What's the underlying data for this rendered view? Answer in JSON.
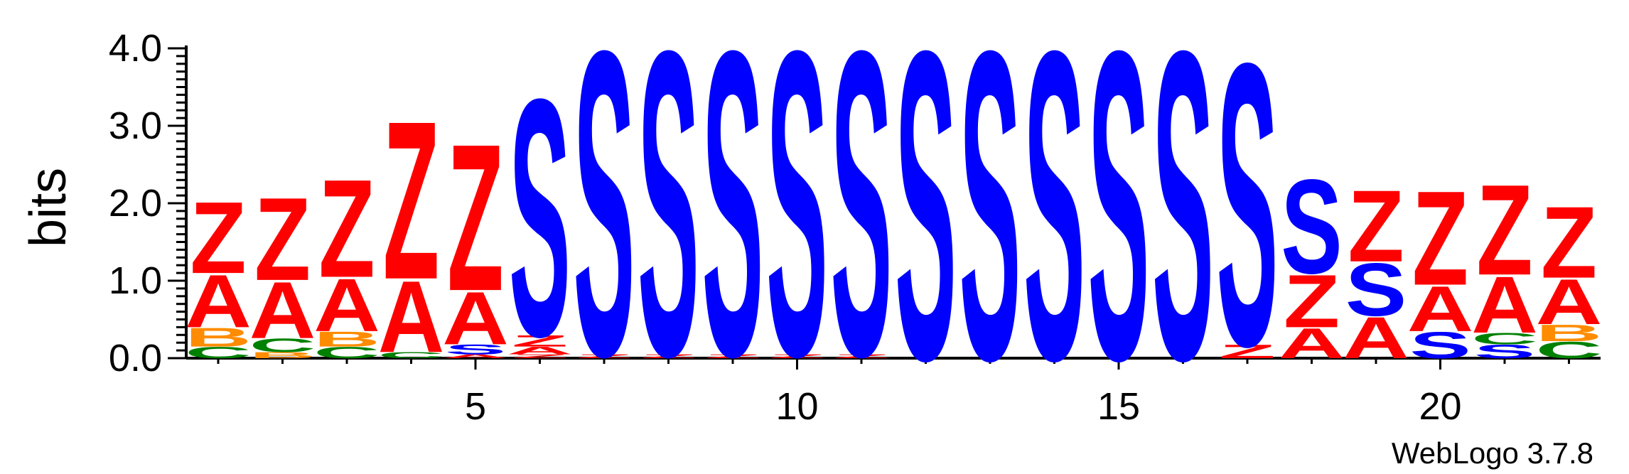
{
  "chart_data": {
    "type": "sequence-logo",
    "ylabel": "bits",
    "ylim": [
      0,
      4.0
    ],
    "y_ticks": [
      "0.0",
      "1.0",
      "2.0",
      "3.0",
      "4.0"
    ],
    "x_ticks": [
      5,
      10,
      15,
      20
    ],
    "x_tick_labels": [
      "5",
      "10",
      "15",
      "20"
    ],
    "credit": "WebLogo 3.7.8",
    "colors": {
      "Z": "#ff0000",
      "A": "#ff0000",
      "S": "#0000ff",
      "B": "#ff8c00",
      "C": "#008000"
    },
    "columns": [
      {
        "position": 1,
        "stack": [
          {
            "letter": "C",
            "bits": 0.15
          },
          {
            "letter": "B",
            "bits": 0.25
          },
          {
            "letter": "A",
            "bits": 0.7
          },
          {
            "letter": "Z",
            "bits": 0.95
          }
        ]
      },
      {
        "position": 2,
        "stack": [
          {
            "letter": "B",
            "bits": 0.08
          },
          {
            "letter": "C",
            "bits": 0.18
          },
          {
            "letter": "A",
            "bits": 0.75
          },
          {
            "letter": "Z",
            "bits": 1.1
          }
        ]
      },
      {
        "position": 3,
        "stack": [
          {
            "letter": "C",
            "bits": 0.15
          },
          {
            "letter": "B",
            "bits": 0.2
          },
          {
            "letter": "A",
            "bits": 0.7
          },
          {
            "letter": "Z",
            "bits": 1.3
          }
        ]
      },
      {
        "position": 4,
        "stack": [
          {
            "letter": "C",
            "bits": 0.08
          },
          {
            "letter": "A",
            "bits": 0.95
          },
          {
            "letter": "Z",
            "bits": 2.1
          }
        ]
      },
      {
        "position": 5,
        "stack": [
          {
            "letter": "A",
            "bits": 0.05
          },
          {
            "letter": "S",
            "bits": 0.13
          },
          {
            "letter": "A",
            "bits": 0.7
          },
          {
            "letter": "Z",
            "bits": 1.95
          }
        ]
      },
      {
        "position": 6,
        "stack": [
          {
            "letter": "Z",
            "bits": 0.05
          },
          {
            "letter": "A",
            "bits": 0.1
          },
          {
            "letter": "Z",
            "bits": 0.15
          },
          {
            "letter": "S",
            "bits": 3.15
          }
        ]
      },
      {
        "position": 7,
        "stack": [
          {
            "letter": "Z",
            "bits": 0.05
          },
          {
            "letter": "S",
            "bits": 4.05
          }
        ]
      },
      {
        "position": 8,
        "stack": [
          {
            "letter": "Z",
            "bits": 0.05
          },
          {
            "letter": "S",
            "bits": 4.05
          }
        ]
      },
      {
        "position": 9,
        "stack": [
          {
            "letter": "Z",
            "bits": 0.05
          },
          {
            "letter": "S",
            "bits": 4.05
          }
        ]
      },
      {
        "position": 10,
        "stack": [
          {
            "letter": "Z",
            "bits": 0.05
          },
          {
            "letter": "S",
            "bits": 4.05
          }
        ]
      },
      {
        "position": 11,
        "stack": [
          {
            "letter": "Z",
            "bits": 0.05
          },
          {
            "letter": "S",
            "bits": 4.05
          }
        ]
      },
      {
        "position": 12,
        "stack": [
          {
            "letter": "S",
            "bits": 4.1
          }
        ]
      },
      {
        "position": 13,
        "stack": [
          {
            "letter": "S",
            "bits": 4.1
          }
        ]
      },
      {
        "position": 14,
        "stack": [
          {
            "letter": "S",
            "bits": 4.1
          }
        ]
      },
      {
        "position": 15,
        "stack": [
          {
            "letter": "S",
            "bits": 4.1
          }
        ]
      },
      {
        "position": 16,
        "stack": [
          {
            "letter": "S",
            "bits": 4.1
          }
        ]
      },
      {
        "position": 17,
        "stack": [
          {
            "letter": "Z",
            "bits": 0.18
          },
          {
            "letter": "S",
            "bits": 3.75
          }
        ]
      },
      {
        "position": 18,
        "stack": [
          {
            "letter": "A",
            "bits": 0.4
          },
          {
            "letter": "Z",
            "bits": 0.7
          },
          {
            "letter": "S",
            "bits": 1.25
          }
        ]
      },
      {
        "position": 19,
        "stack": [
          {
            "letter": "A",
            "bits": 0.55
          },
          {
            "letter": "S",
            "bits": 0.7
          },
          {
            "letter": "Z",
            "bits": 0.95
          }
        ]
      },
      {
        "position": 20,
        "stack": [
          {
            "letter": "S",
            "bits": 0.35
          },
          {
            "letter": "A",
            "bits": 0.6
          },
          {
            "letter": "Z",
            "bits": 1.25
          }
        ]
      },
      {
        "position": 21,
        "stack": [
          {
            "letter": "S",
            "bits": 0.18
          },
          {
            "letter": "C",
            "bits": 0.15
          },
          {
            "letter": "A",
            "bits": 0.75
          },
          {
            "letter": "Z",
            "bits": 1.2
          }
        ]
      },
      {
        "position": 22,
        "stack": [
          {
            "letter": "C",
            "bits": 0.22
          },
          {
            "letter": "B",
            "bits": 0.22
          },
          {
            "letter": "A",
            "bits": 0.6
          },
          {
            "letter": "Z",
            "bits": 0.95
          }
        ]
      }
    ]
  }
}
